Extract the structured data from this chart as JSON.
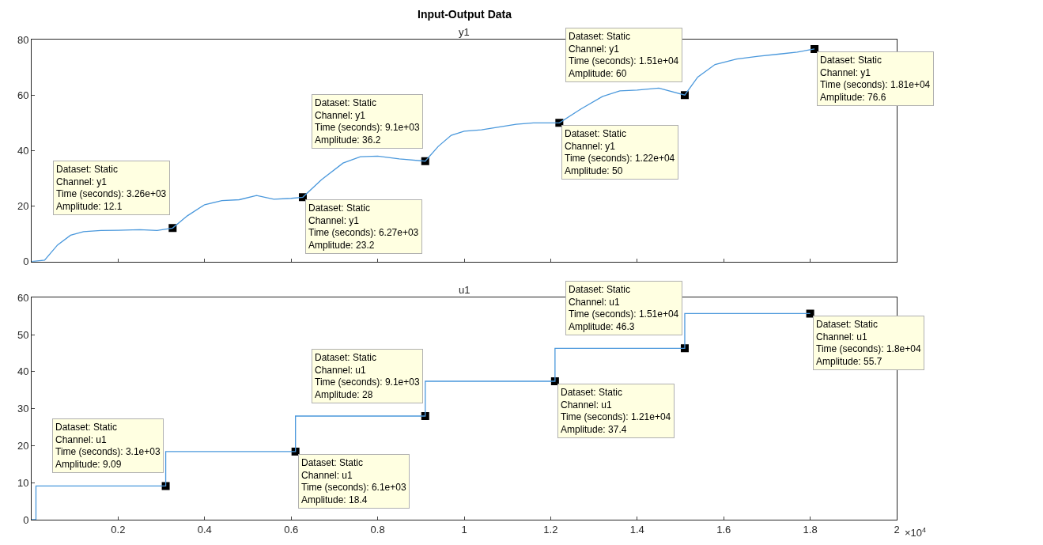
{
  "chart_data": [
    {
      "type": "line",
      "title": "Input-Output Data",
      "subtitle": "y1",
      "tick_labels": "y",
      "grid": false,
      "marker": "none",
      "line_style": "solid",
      "xlim": [
        0,
        2
      ],
      "ylim": [
        0,
        80
      ],
      "yticks": [
        0,
        20,
        40,
        60,
        80
      ],
      "xticks": [
        0.2,
        0.4,
        0.6,
        0.8,
        1,
        1.2,
        1.4,
        1.6,
        1.8,
        2
      ],
      "series": [
        {
          "color": "#4a98dc",
          "x": [
            0,
            0.03,
            0.06,
            0.09,
            0.12,
            0.16,
            0.2,
            0.25,
            0.29,
            0.326,
            0.36,
            0.4,
            0.44,
            0.48,
            0.52,
            0.56,
            0.6,
            0.627,
            0.67,
            0.72,
            0.76,
            0.8,
            0.85,
            0.91,
            0.94,
            0.97,
            1.0,
            1.04,
            1.08,
            1.12,
            1.16,
            1.22,
            1.27,
            1.32,
            1.36,
            1.4,
            1.45,
            1.51,
            1.54,
            1.58,
            1.63,
            1.68,
            1.73,
            1.77,
            1.81
          ],
          "values": [
            0,
            0.5,
            6,
            9.5,
            10.8,
            11.2,
            11.3,
            11.5,
            11.2,
            12.1,
            16.5,
            20.5,
            22,
            22.3,
            23.8,
            22.5,
            22.8,
            23.2,
            29.5,
            35.5,
            37.8,
            38,
            37,
            36.2,
            41.5,
            45.5,
            47,
            47.5,
            48.5,
            49.5,
            50,
            50,
            55,
            59.5,
            61.5,
            61.8,
            62.5,
            60,
            66.5,
            71,
            73,
            74,
            74.8,
            75.5,
            76.6
          ]
        }
      ],
      "annotations": [
        {
          "text": "Dataset: Static\nChannel: y1\nTime (seconds): 3.26e+03\nAmplitude: 12.1",
          "x": 0.326,
          "y": 12.1
        },
        {
          "text": "Dataset: Static\nChannel: y1\nTime (seconds): 6.27e+03\nAmplitude: 23.2",
          "x": 0.627,
          "y": 23.2
        },
        {
          "text": "Dataset: Static\nChannel: y1\nTime (seconds): 9.1e+03\nAmplitude: 36.2",
          "x": 0.91,
          "y": 36.2
        },
        {
          "text": "Dataset: Static\nChannel: y1\nTime (seconds): 1.22e+04\nAmplitude: 50",
          "x": 1.22,
          "y": 50
        },
        {
          "text": "Dataset: Static\nChannel: y1\nTime (seconds): 1.51e+04\nAmplitude: 60",
          "x": 1.51,
          "y": 60
        },
        {
          "text": "Dataset: Static\nChannel: y1\nTime (seconds): 1.81e+04\nAmplitude: 76.6",
          "x": 1.81,
          "y": 76.6
        }
      ]
    },
    {
      "type": "step",
      "title": "u1",
      "grid": false,
      "marker": "none",
      "line_style": "solid",
      "xlim": [
        0,
        2
      ],
      "ylim": [
        0,
        60
      ],
      "yticks": [
        0,
        10,
        20,
        30,
        40,
        50,
        60
      ],
      "xticks": [
        0.2,
        0.4,
        0.6,
        0.8,
        1,
        1.2,
        1.4,
        1.6,
        1.8,
        2
      ],
      "series": [
        {
          "color": "#4a98dc",
          "x": [
            0,
            0.01,
            0.31,
            0.61,
            0.91,
            1.21,
            1.51,
            1.8
          ],
          "values": [
            0,
            9.09,
            18.4,
            28,
            37.4,
            46.3,
            55.7,
            55.7
          ]
        }
      ],
      "annotations": [
        "×10$^{4}$",
        {
          "text": "Dataset: Static\nChannel: u1\nTime (seconds): 3.1e+03\nAmplitude: 9.09",
          "x": 0.31,
          "y": 9.09
        },
        {
          "text": "Dataset: Static\nChannel: u1\nTime (seconds): 6.1e+03\nAmplitude: 18.4",
          "x": 0.61,
          "y": 18.4
        },
        {
          "text": "Dataset: Static\nChannel: u1\nTime (seconds): 9.1e+03\nAmplitude: 28",
          "x": 0.91,
          "y": 28
        },
        {
          "text": "Dataset: Static\nChannel: u1\nTime (seconds): 1.21e+04\nAmplitude: 37.4",
          "x": 1.21,
          "y": 37.4
        },
        {
          "text": "Dataset: Static\nChannel: u1\nTime (seconds): 1.51e+04\nAmplitude: 46.3",
          "x": 1.51,
          "y": 46.3
        },
        {
          "text": "Dataset: Static\nChannel: u1\nTime (seconds): 1.8e+04\nAmplitude: 55.7",
          "x": 1.8,
          "y": 55.7
        }
      ]
    }
  ]
}
